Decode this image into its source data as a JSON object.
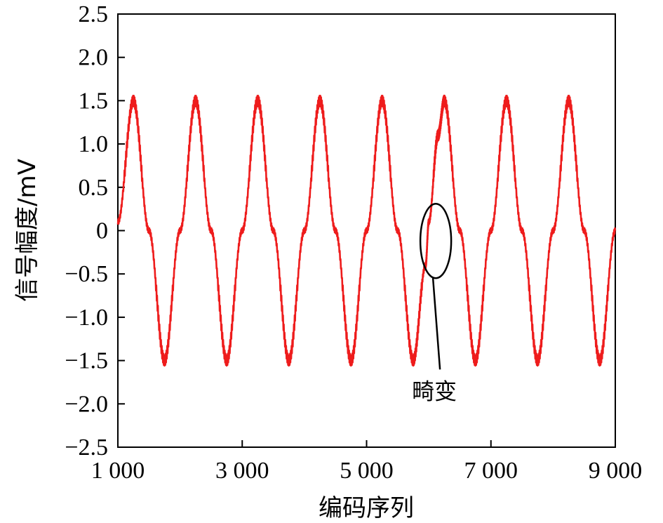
{
  "chart_data": {
    "type": "line",
    "title": "",
    "xlabel": "编码序列",
    "ylabel": "信号幅度/mV",
    "xlim": [
      1000,
      9000
    ],
    "ylim": [
      -2.5,
      2.5
    ],
    "x_ticks": [
      1000,
      3000,
      5000,
      7000,
      9000
    ],
    "x_tick_labels": [
      "1 000",
      "3 000",
      "5 000",
      "7 000",
      "9 000"
    ],
    "y_ticks": [
      2.5,
      2.0,
      1.5,
      1.0,
      0.5,
      0,
      -0.5,
      -1.0,
      -1.5,
      -2.0,
      -2.5
    ],
    "y_tick_labels": [
      "2.5",
      "2.0",
      "1.5",
      "1.0",
      "0.5",
      "0",
      "−0.5",
      "−1.0",
      "−1.5",
      "−2.0",
      "−2.5"
    ],
    "grid": false,
    "series": [
      {
        "color": "#ee1c1c",
        "x": [
          1000,
          1250,
          1500,
          1750,
          2000,
          2250,
          2500,
          2750,
          3000,
          3250,
          3500,
          3750,
          4000,
          4250,
          4500,
          4750,
          5000,
          5250,
          5500,
          5750,
          5950,
          6000,
          6150,
          6250,
          6500,
          6750,
          7000,
          7250,
          7500,
          7750,
          8000,
          8250,
          8500,
          8750,
          9000
        ],
        "y": [
          0.1,
          1.5,
          0.0,
          -1.5,
          0.0,
          1.5,
          0.0,
          -1.5,
          0.0,
          1.5,
          0.0,
          -1.5,
          0.0,
          1.5,
          0.0,
          -1.5,
          0.0,
          1.5,
          0.0,
          -1.5,
          -0.4,
          0.1,
          1.1,
          1.5,
          0.0,
          -1.5,
          0.0,
          1.5,
          0.0,
          -1.5,
          0.0,
          1.5,
          0.0,
          -1.5,
          0.0
        ]
      }
    ],
    "annotation": {
      "label": "畸变",
      "x": 6000,
      "y": -0.12
    }
  }
}
